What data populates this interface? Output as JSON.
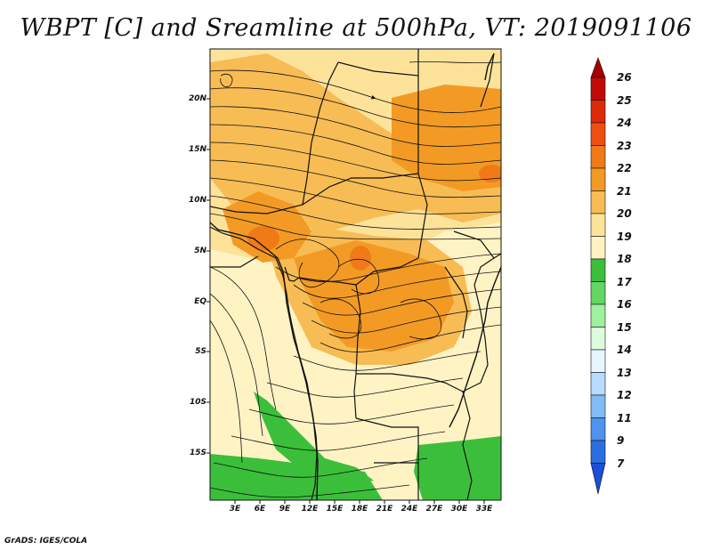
{
  "title": "WBPT [C] and Sreamline at 500hPa, VT: 2019091106",
  "credit": "GrADS: IGES/COLA",
  "map": {
    "lat_labels": [
      "20N",
      "15N",
      "10N",
      "5N",
      "EQ",
      "5S",
      "10S",
      "15S"
    ],
    "lon_labels": [
      "3E",
      "6E",
      "9E",
      "12E",
      "15E",
      "18E",
      "21E",
      "24E",
      "27E",
      "30E",
      "33E"
    ]
  },
  "colorbar": {
    "labels": [
      "26",
      "25",
      "24",
      "23",
      "22",
      "21",
      "20",
      "19",
      "18",
      "17",
      "16",
      "15",
      "14",
      "13",
      "12",
      "11",
      "9",
      "7"
    ],
    "colors": [
      "#a50000",
      "#c00a0a",
      "#dd2a0a",
      "#ee4f10",
      "#f07a18",
      "#f39a25",
      "#f8bc55",
      "#fde39a",
      "#fff3c4",
      "#3bbf3b",
      "#63d663",
      "#9ff09f",
      "#ddfbdd",
      "#e6f6ff",
      "#b8dcff",
      "#82bcf7",
      "#4d94ee",
      "#2a6fe0",
      "#1a4fd6"
    ]
  },
  "colors": {
    "wbpt_19": "#fff3c4",
    "wbpt_20": "#fde39a",
    "wbpt_21": "#f8bc55",
    "wbpt_22": "#f39a25",
    "wbpt_23": "#f07a18",
    "wbpt_17": "#3bbf3b"
  }
}
